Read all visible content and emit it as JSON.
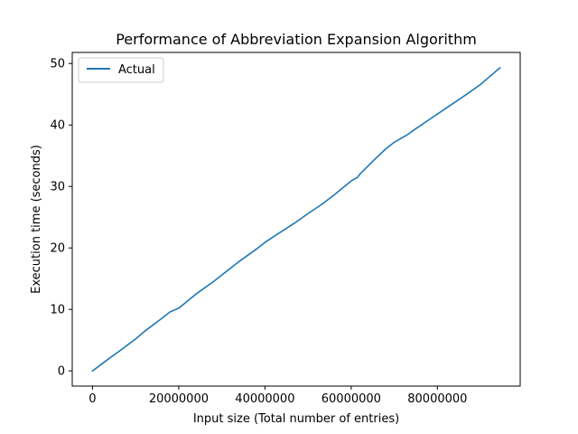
{
  "chart_data": {
    "type": "line",
    "title": "Performance of Abbreviation Expansion Algorithm",
    "xlabel": "Input size (Total number of entries)",
    "ylabel": "Execution time (seconds)",
    "xlim": [
      -4700000,
      99200000
    ],
    "ylim": [
      -2.47,
      51.8
    ],
    "xticks": [
      0,
      20000000,
      40000000,
      60000000,
      80000000
    ],
    "xtick_labels": [
      "0",
      "20000000",
      "40000000",
      "60000000",
      "80000000"
    ],
    "yticks": [
      0,
      10,
      20,
      30,
      40,
      50
    ],
    "ytick_labels": [
      "0",
      "10",
      "20",
      "30",
      "40",
      "50"
    ],
    "grid": false,
    "legend": {
      "position": "upper-left",
      "entries": [
        "Actual"
      ]
    },
    "series": [
      {
        "name": "Actual",
        "color": "#1f77b4",
        "x": [
          0,
          4000000,
          6000000,
          10000000,
          12000000,
          16000000,
          18000000,
          20000000,
          24000000,
          28000000,
          30000000,
          34000000,
          38000000,
          40000000,
          43000000,
          47000000,
          50000000,
          53000000,
          56000000,
          60000000,
          61500000,
          62000000,
          65000000,
          68000000,
          70000000,
          73000000,
          75000000,
          79000000,
          83000000,
          87000000,
          90000000,
          92000000,
          94500000
        ],
        "y": [
          0,
          2.1,
          3.1,
          5.2,
          6.4,
          8.5,
          9.6,
          10.2,
          12.5,
          14.5,
          15.6,
          17.8,
          19.8,
          20.9,
          22.3,
          24.1,
          25.6,
          27.0,
          28.6,
          30.9,
          31.5,
          32.0,
          34.1,
          36.1,
          37.2,
          38.4,
          39.4,
          41.3,
          43.2,
          45.1,
          46.6,
          47.8,
          49.3
        ]
      }
    ]
  }
}
